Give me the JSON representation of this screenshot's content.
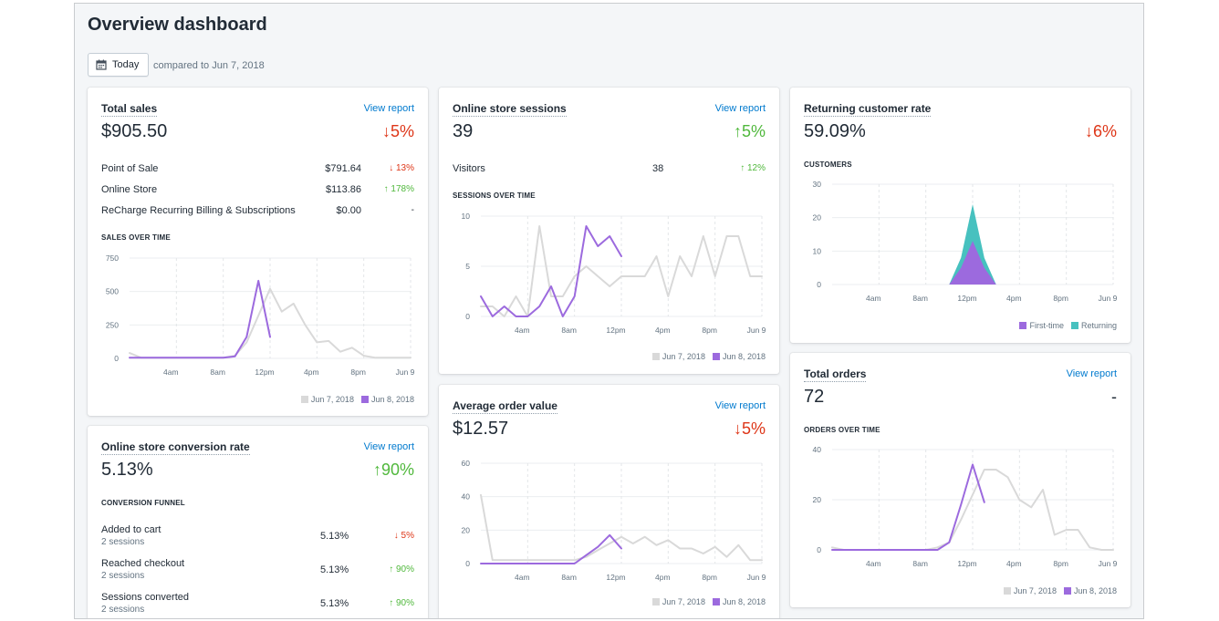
{
  "page": {
    "title": "Overview dashboard",
    "date_button": "Today",
    "date_button_icon": "calendar-icon",
    "compare_text": "compared to Jun 7, 2018"
  },
  "colors": {
    "previous": "#d9d9d9",
    "current": "#9c6ade",
    "returning": "#47c1bf",
    "down": "#de3618",
    "up": "#50b83c",
    "link": "#007ace"
  },
  "total_sales": {
    "title": "Total sales",
    "view_report": "View report",
    "value": "$905.50",
    "delta": "↓5%",
    "rows": [
      {
        "label": "Point of Sale",
        "amount": "$791.64",
        "pct": "↓ 13%",
        "dir": "down"
      },
      {
        "label": "Online Store",
        "amount": "$113.86",
        "pct": "↑ 178%",
        "dir": "up"
      },
      {
        "label": "ReCharge Recurring Billing & Subscriptions",
        "amount": "$0.00",
        "pct": "-",
        "dir": "neutral"
      }
    ],
    "section": "SALES OVER TIME",
    "legend_prev": "Jun 7, 2018",
    "legend_curr": "Jun 8, 2018"
  },
  "sessions": {
    "title": "Online store sessions",
    "view_report": "View report",
    "value": "39",
    "delta": "↑5%",
    "visitors_label": "Visitors",
    "visitors_value": "38",
    "visitors_pct": "↑ 12%",
    "section": "SESSIONS OVER TIME",
    "legend_prev": "Jun 7, 2018",
    "legend_curr": "Jun 8, 2018"
  },
  "returning": {
    "title": "Returning customer rate",
    "value": "59.09%",
    "delta": "↓6%",
    "section": "CUSTOMERS",
    "legend_first": "First-time",
    "legend_returning": "Returning"
  },
  "conversion": {
    "title": "Online store conversion rate",
    "view_report": "View report",
    "value": "5.13%",
    "delta": "↑90%",
    "section": "CONVERSION FUNNEL",
    "rows": [
      {
        "label": "Added to cart",
        "sub": "2 sessions",
        "value": "5.13%",
        "pct": "↓ 5%",
        "dir": "down"
      },
      {
        "label": "Reached checkout",
        "sub": "2 sessions",
        "value": "5.13%",
        "pct": "↑ 90%",
        "dir": "up"
      },
      {
        "label": "Sessions converted",
        "sub": "2 sessions",
        "value": "5.13%",
        "pct": "↑ 90%",
        "dir": "up"
      }
    ]
  },
  "aov": {
    "title": "Average order value",
    "view_report": "View report",
    "value": "$12.57",
    "delta": "↓5%",
    "legend_prev": "Jun 7, 2018",
    "legend_curr": "Jun 8, 2018"
  },
  "orders": {
    "title": "Total orders",
    "view_report": "View report",
    "value": "72",
    "delta": "-",
    "section": "ORDERS OVER TIME",
    "legend_prev": "Jun 7, 2018",
    "legend_curr": "Jun 8, 2018"
  },
  "chart_data": [
    {
      "id": "sales",
      "type": "line",
      "x_ticks": [
        "4am",
        "8am",
        "12pm",
        "4pm",
        "8pm",
        "Jun 9"
      ],
      "y_ticks": [
        0,
        250,
        500,
        750
      ],
      "ylim": [
        0,
        750
      ],
      "x_hours": [
        0,
        24
      ],
      "series": [
        {
          "name": "Jun 7, 2018",
          "color": "#d9d9d9",
          "x": [
            0,
            1,
            2,
            3,
            4,
            5,
            6,
            7,
            8,
            9,
            10,
            11,
            12,
            13,
            14,
            15,
            16,
            17,
            18,
            19,
            20,
            21,
            22,
            23,
            24
          ],
          "y": [
            40,
            5,
            5,
            5,
            5,
            5,
            5,
            5,
            5,
            20,
            120,
            320,
            520,
            350,
            410,
            250,
            120,
            130,
            50,
            80,
            20,
            5,
            5,
            5,
            5
          ]
        },
        {
          "name": "Jun 8, 2018",
          "color": "#9c6ade",
          "x": [
            0,
            1,
            2,
            3,
            4,
            5,
            6,
            7,
            8,
            9,
            10,
            11,
            12
          ],
          "y": [
            5,
            5,
            5,
            5,
            5,
            5,
            5,
            5,
            5,
            15,
            160,
            580,
            160
          ]
        }
      ]
    },
    {
      "id": "sessions",
      "type": "line",
      "x_ticks": [
        "4am",
        "8am",
        "12pm",
        "4pm",
        "8pm",
        "Jun 9"
      ],
      "y_ticks": [
        0,
        5,
        10
      ],
      "ylim": [
        0,
        10
      ],
      "x_hours": [
        0,
        24
      ],
      "series": [
        {
          "name": "Jun 7, 2018",
          "color": "#d9d9d9",
          "x": [
            0,
            1,
            2,
            3,
            4,
            5,
            6,
            7,
            8,
            9,
            10,
            11,
            12,
            13,
            14,
            15,
            16,
            17,
            18,
            19,
            20,
            21,
            22,
            23,
            24
          ],
          "y": [
            1,
            1,
            0,
            2,
            0,
            9,
            2,
            2,
            4,
            5,
            4,
            3,
            4,
            4,
            4,
            6,
            2,
            6,
            4,
            8,
            4,
            8,
            8,
            4,
            4
          ]
        },
        {
          "name": "Jun 8, 2018",
          "color": "#9c6ade",
          "x": [
            0,
            1,
            2,
            3,
            4,
            5,
            6,
            7,
            8,
            9,
            10,
            11,
            12
          ],
          "y": [
            2,
            0,
            1,
            0,
            0,
            1,
            3,
            0,
            2,
            9,
            7,
            8,
            6
          ]
        }
      ]
    },
    {
      "id": "customers",
      "type": "area",
      "x_ticks": [
        "4am",
        "8am",
        "12pm",
        "4pm",
        "8pm",
        "Jun 9"
      ],
      "y_ticks": [
        0,
        10,
        20,
        30
      ],
      "ylim": [
        0,
        30
      ],
      "x_hours": [
        0,
        24
      ],
      "series": [
        {
          "name": "Returning",
          "color": "#47c1bf",
          "x": [
            0,
            9,
            10,
            11,
            12,
            13,
            14,
            24
          ],
          "y": [
            0,
            0,
            0,
            8,
            24,
            8,
            0,
            0
          ]
        },
        {
          "name": "First-time",
          "color": "#9c6ade",
          "x": [
            0,
            9,
            10,
            11,
            12,
            13,
            14,
            24
          ],
          "y": [
            0,
            0,
            0,
            5,
            13,
            5,
            0,
            0
          ]
        }
      ]
    },
    {
      "id": "aov",
      "type": "line",
      "x_ticks": [
        "4am",
        "8am",
        "12pm",
        "4pm",
        "8pm",
        "Jun 9"
      ],
      "y_ticks": [
        0,
        20,
        40,
        60
      ],
      "ylim": [
        0,
        60
      ],
      "x_hours": [
        0,
        24
      ],
      "series": [
        {
          "name": "Jun 7, 2018",
          "color": "#d9d9d9",
          "x": [
            0,
            1,
            2,
            3,
            4,
            5,
            6,
            7,
            8,
            9,
            10,
            11,
            12,
            13,
            14,
            15,
            16,
            17,
            18,
            19,
            20,
            21,
            22,
            23,
            24
          ],
          "y": [
            41,
            2,
            2,
            2,
            2,
            2,
            2,
            2,
            2,
            4,
            8,
            12,
            16,
            12,
            16,
            11,
            14,
            9,
            9,
            6,
            10,
            4,
            11,
            2,
            2
          ]
        },
        {
          "name": "Jun 8, 2018",
          "color": "#9c6ade",
          "x": [
            0,
            1,
            2,
            3,
            4,
            5,
            6,
            7,
            8,
            9,
            10,
            11,
            12
          ],
          "y": [
            0,
            0,
            0,
            0,
            0,
            0,
            0,
            0,
            0,
            5,
            10,
            17,
            9
          ]
        }
      ]
    },
    {
      "id": "orders",
      "type": "line",
      "x_ticks": [
        "4am",
        "8am",
        "12pm",
        "4pm",
        "8pm",
        "Jun 9"
      ],
      "y_ticks": [
        0,
        20,
        40
      ],
      "ylim": [
        0,
        40
      ],
      "x_hours": [
        0,
        24
      ],
      "series": [
        {
          "name": "Jun 7, 2018",
          "color": "#d9d9d9",
          "x": [
            0,
            1,
            2,
            3,
            4,
            5,
            6,
            7,
            8,
            9,
            10,
            11,
            12,
            13,
            14,
            15,
            16,
            17,
            18,
            19,
            20,
            21,
            22,
            23,
            24
          ],
          "y": [
            1,
            0,
            0,
            0,
            0,
            0,
            0,
            0,
            0,
            1,
            3,
            12,
            22,
            32,
            32,
            29,
            20,
            17,
            24,
            6,
            8,
            8,
            1,
            0,
            0
          ]
        },
        {
          "name": "Jun 8, 2018",
          "color": "#9c6ade",
          "x": [
            0,
            1,
            2,
            3,
            4,
            5,
            6,
            7,
            8,
            9,
            10,
            11,
            12,
            13
          ],
          "y": [
            0,
            0,
            0,
            0,
            0,
            0,
            0,
            0,
            0,
            0,
            3,
            18,
            34,
            19
          ]
        }
      ]
    }
  ]
}
